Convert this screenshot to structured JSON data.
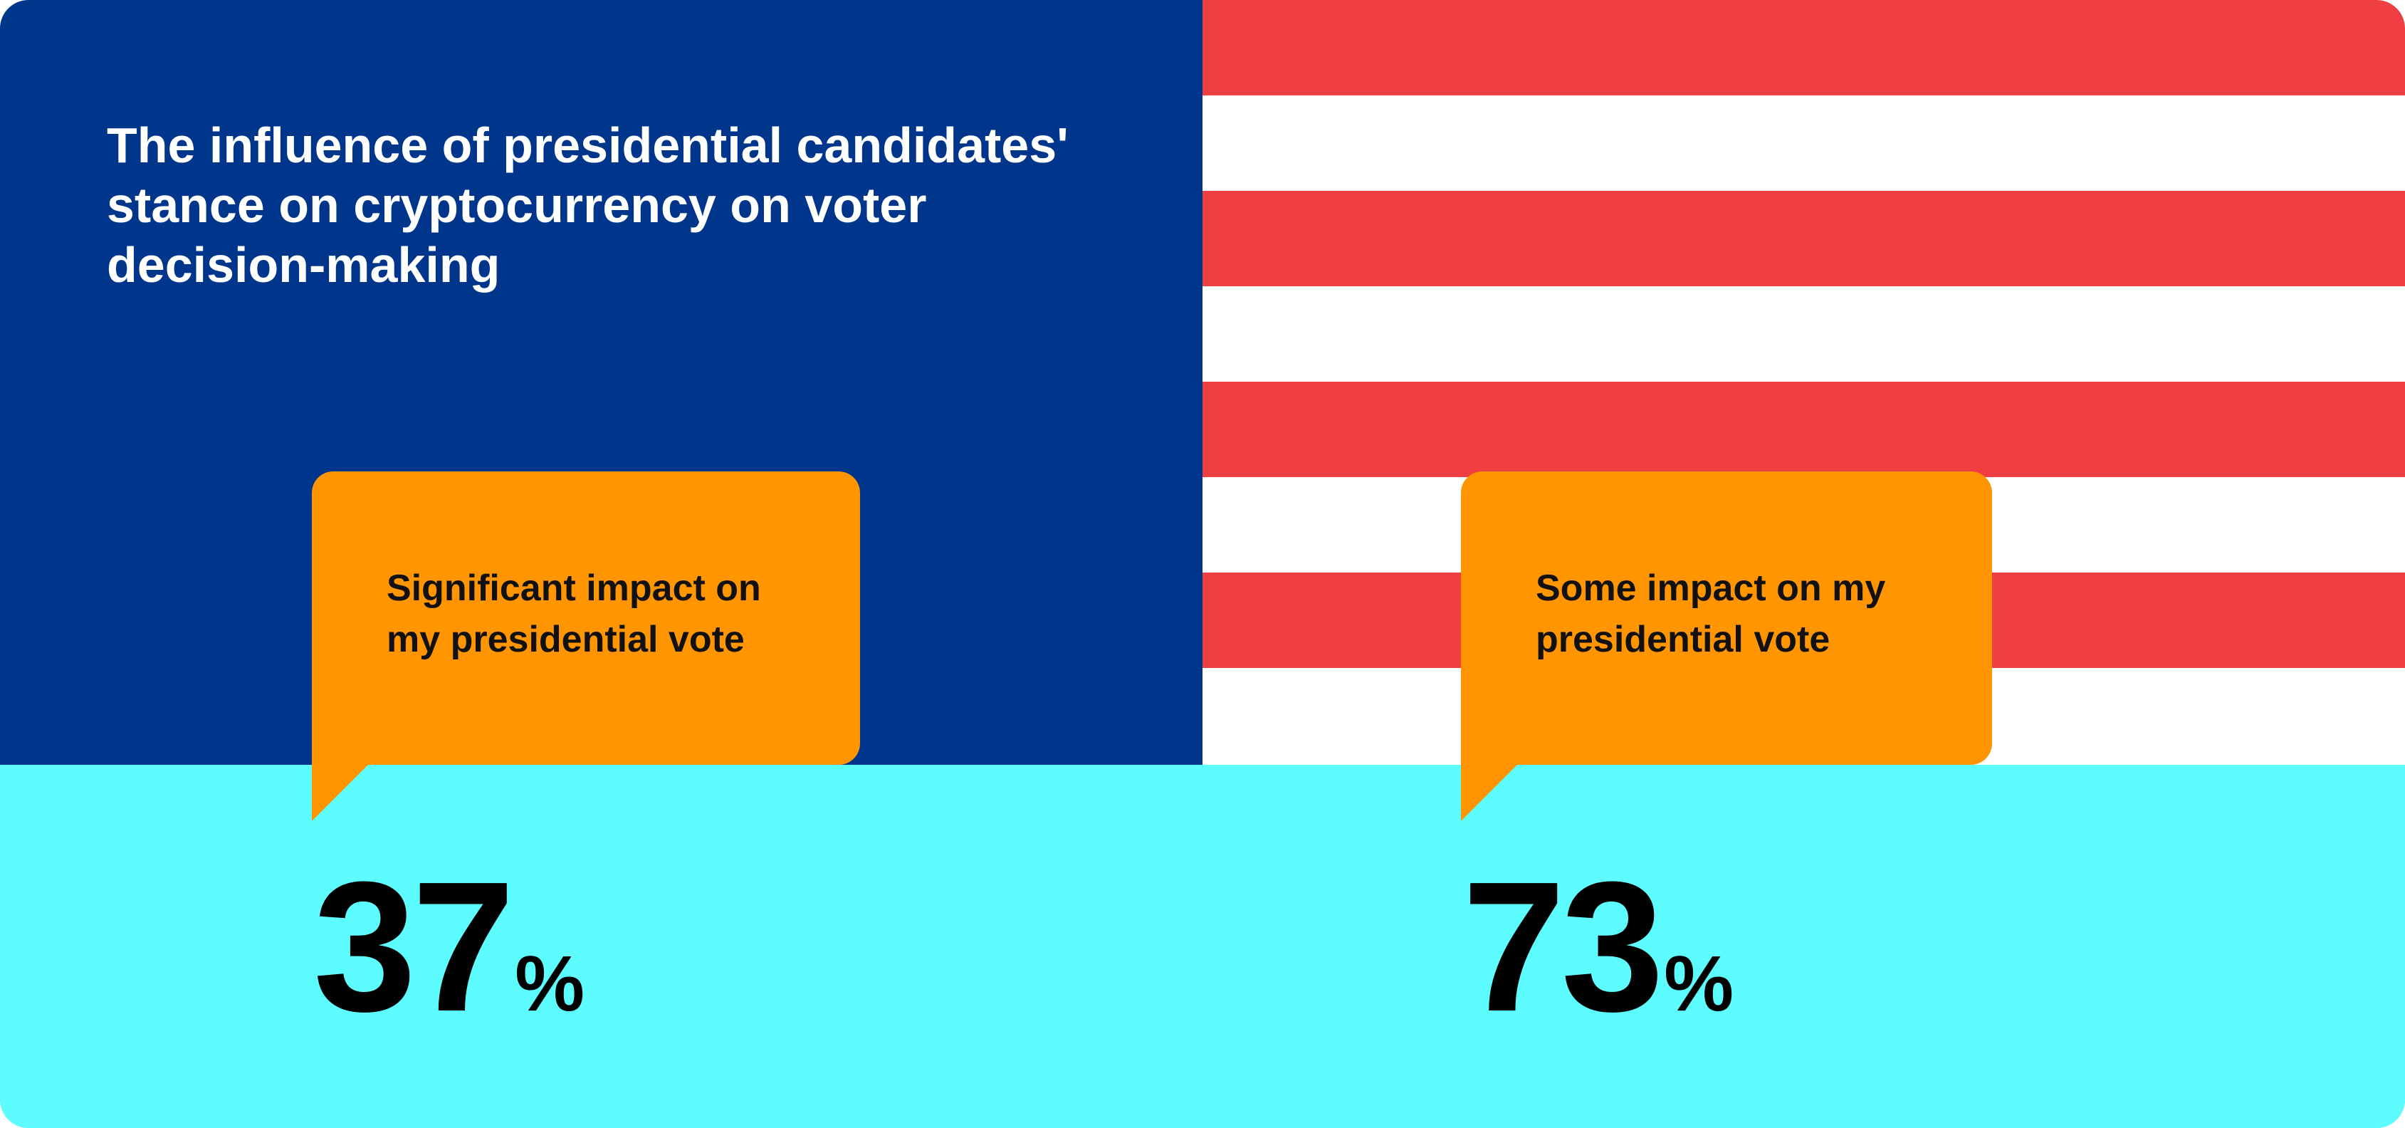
{
  "colors": {
    "navy": "#00358c",
    "flag_red": "#f03f42",
    "flag_white": "#ffffff",
    "cyan": "#5cfcff",
    "callout_orange": "#ff9500",
    "text_light": "#ffffff",
    "text_dark": "#000000"
  },
  "chart_data": {
    "type": "infographic",
    "title": "The influence of presidential candidates' stance on cryptocurrency on voter decision-making",
    "unit": "%",
    "items": [
      {
        "label": "Significant impact on my presidential vote",
        "value": 37
      },
      {
        "label": "Some impact on my presidential vote",
        "value": 73
      }
    ]
  }
}
